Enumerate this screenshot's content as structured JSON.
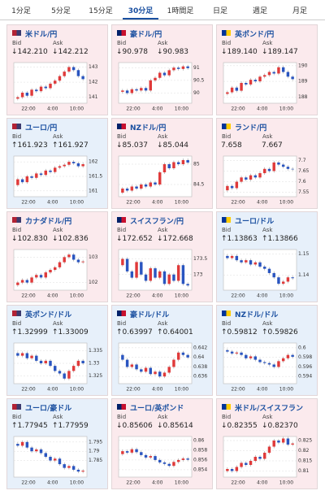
{
  "tabs": {
    "items": [
      "1分足",
      "5分足",
      "15分足",
      "30分足",
      "1時間足",
      "日足",
      "週足",
      "月足"
    ],
    "active": 3
  },
  "panels": [
    {
      "name": "米ドル/円",
      "bid_label": "Bid",
      "ask_label": "Ask",
      "bid": "↓142.210",
      "ask": "↓142.212",
      "trend": "down",
      "chart": {
        "ylim": [
          140.6,
          143.3
        ],
        "yticks": [
          141,
          142,
          143
        ],
        "xticks": [
          "22:00",
          "4:00",
          "10:00"
        ],
        "open": 140.9,
        "closes": [
          141.0,
          141.3,
          141.1,
          141.5,
          141.4,
          141.7,
          141.6,
          141.9,
          142.1,
          142.4,
          142.7,
          143.0,
          142.8,
          142.4,
          142.2
        ]
      }
    },
    {
      "name": "豪ドル/円",
      "bid_label": "Bid",
      "ask_label": "Ask",
      "bid": "↓90.978",
      "ask": "↓90.983",
      "trend": "down",
      "chart": {
        "ylim": [
          89.6,
          91.2
        ],
        "yticks": [
          90,
          90.5,
          91
        ],
        "xticks": [
          "22:00",
          "4:00",
          "10:00"
        ],
        "open": 90.05,
        "closes": [
          90.1,
          90.0,
          90.15,
          90.1,
          90.2,
          90.1,
          90.5,
          90.6,
          90.8,
          90.7,
          90.9,
          91.0,
          90.95,
          91.05,
          90.98
        ]
      }
    },
    {
      "name": "英ポンド/円",
      "bid_label": "Bid",
      "ask_label": "Ask",
      "bid": "↓189.140",
      "ask": "↓189.147",
      "trend": "down",
      "chart": {
        "ylim": [
          187.6,
          190.2
        ],
        "yticks": [
          188,
          189,
          190
        ],
        "xticks": [
          "22:00",
          "4:00",
          "10:00"
        ],
        "open": 188.2,
        "closes": [
          188.3,
          188.6,
          188.4,
          188.9,
          188.8,
          189.1,
          189.0,
          189.3,
          189.4,
          189.6,
          189.5,
          189.9,
          189.6,
          189.3,
          189.14
        ]
      }
    },
    {
      "name": "ユーロ/円",
      "bid_label": "Bid",
      "ask_label": "Ask",
      "bid": "↑161.923",
      "ask": "↑161.927",
      "trend": "up",
      "chart": {
        "ylim": [
          160.8,
          162.2
        ],
        "yticks": [
          161,
          161.5,
          162
        ],
        "xticks": [
          "22:00",
          "4:00",
          "10:00"
        ],
        "open": 161.2,
        "closes": [
          161.4,
          161.3,
          161.5,
          161.45,
          161.6,
          161.55,
          161.7,
          161.65,
          161.8,
          161.85,
          161.9,
          162.0,
          161.95,
          161.85,
          161.92
        ]
      }
    },
    {
      "name": "NZドル/円",
      "bid_label": "Bid",
      "ask_label": "Ask",
      "bid": "↓85.037",
      "ask": "↓85.044",
      "trend": "down",
      "chart": {
        "ylim": [
          84.2,
          85.2
        ],
        "yticks": [
          84.5,
          85
        ],
        "xticks": [
          "22:00",
          "4:00",
          "10:00"
        ],
        "open": 84.3,
        "closes": [
          84.4,
          84.35,
          84.45,
          84.4,
          84.5,
          84.45,
          84.55,
          84.5,
          84.8,
          85.0,
          84.9,
          85.05,
          85.0,
          85.1,
          85.04
        ]
      }
    },
    {
      "name": "ランド/円",
      "bid_label": "Bid",
      "ask_label": "Ask",
      "bid": "7.658",
      "ask": "7.667",
      "trend": "none",
      "chart": {
        "ylim": [
          7.53,
          7.72
        ],
        "yticks": [
          7.55,
          7.6,
          7.65,
          7.7
        ],
        "xticks": [
          "22:00",
          "4:00",
          "10:00"
        ],
        "open": 7.56,
        "closes": [
          7.58,
          7.57,
          7.6,
          7.62,
          7.61,
          7.63,
          7.62,
          7.64,
          7.66,
          7.65,
          7.69,
          7.68,
          7.67,
          7.66,
          7.658
        ]
      }
    },
    {
      "name": "カナダドル/円",
      "bid_label": "Bid",
      "ask_label": "Ask",
      "bid": "↓102.830",
      "ask": "↓102.836",
      "trend": "down",
      "chart": {
        "ylim": [
          101.7,
          103.3
        ],
        "yticks": [
          102,
          103
        ],
        "xticks": [
          "22:00",
          "4:00",
          "10:00"
        ],
        "open": 101.9,
        "closes": [
          102.0,
          102.1,
          102.0,
          102.2,
          102.3,
          102.2,
          102.4,
          102.5,
          102.6,
          102.8,
          103.0,
          103.1,
          102.9,
          102.8,
          102.83
        ]
      }
    },
    {
      "name": "スイスフラン/円",
      "bid_label": "Bid",
      "ask_label": "Ask",
      "bid": "↓172.652",
      "ask": "↓172.668",
      "trend": "down",
      "chart": {
        "ylim": [
          172.5,
          173.8
        ],
        "yticks": [
          173,
          173.5
        ],
        "xticks": [
          "22:00",
          "4:00",
          "10:00"
        ],
        "open": 173.3,
        "closes": [
          173.5,
          173.1,
          172.9,
          173.4,
          173.0,
          172.8,
          173.2,
          172.9,
          173.1,
          172.7,
          173.0,
          172.8,
          173.3,
          172.7,
          172.65
        ]
      }
    },
    {
      "name": "ユーロ/ドル",
      "bid_label": "Bid",
      "ask_label": "Ask",
      "bid": "↑1.13863",
      "ask": "↑1.13866",
      "trend": "up",
      "chart": {
        "ylim": [
          1.133,
          1.152
        ],
        "yticks": [
          1.14,
          1.15
        ],
        "xticks": [
          "22:00",
          "4:00",
          "10:00"
        ],
        "open": 1.149,
        "closes": [
          1.148,
          1.149,
          1.147,
          1.146,
          1.147,
          1.145,
          1.146,
          1.144,
          1.143,
          1.141,
          1.139,
          1.136,
          1.137,
          1.139,
          1.1386
        ]
      }
    },
    {
      "name": "英ポンド/ドル",
      "bid_label": "Bid",
      "ask_label": "Ask",
      "bid": "↑1.32999",
      "ask": "↑1.33009",
      "trend": "up",
      "chart": {
        "ylim": [
          1.322,
          1.338
        ],
        "yticks": [
          1.325,
          1.33,
          1.335
        ],
        "xticks": [
          "22:00",
          "4:00",
          "10:00"
        ],
        "open": 1.334,
        "closes": [
          1.333,
          1.334,
          1.332,
          1.333,
          1.331,
          1.33,
          1.331,
          1.329,
          1.327,
          1.326,
          1.324,
          1.327,
          1.329,
          1.331,
          1.33
        ]
      }
    },
    {
      "name": "豪ドル/ドル",
      "bid_label": "Bid",
      "ask_label": "Ask",
      "bid": "↑0.63997",
      "ask": "↑0.64001",
      "trend": "up",
      "chart": {
        "ylim": [
          0.6345,
          0.643
        ],
        "yticks": [
          0.636,
          0.638,
          0.64,
          0.642
        ],
        "xticks": [
          "22:00",
          "4:00",
          "10:00"
        ],
        "open": 0.6405,
        "closes": [
          0.6395,
          0.638,
          0.6385,
          0.6375,
          0.637,
          0.6378,
          0.6365,
          0.637,
          0.636,
          0.6368,
          0.638,
          0.6395,
          0.641,
          0.6405,
          0.63997
        ]
      }
    },
    {
      "name": "NZドル/ドル",
      "bid_label": "Bid",
      "ask_label": "Ask",
      "bid": "↑0.59812",
      "ask": "↑0.59826",
      "trend": "up",
      "chart": {
        "ylim": [
          0.5925,
          0.601
        ],
        "yticks": [
          0.594,
          0.596,
          0.598,
          0.6
        ],
        "xticks": [
          "22:00",
          "4:00",
          "10:00"
        ],
        "open": 0.5995,
        "closes": [
          0.5992,
          0.5988,
          0.599,
          0.5985,
          0.5978,
          0.5982,
          0.5975,
          0.597,
          0.5968,
          0.5965,
          0.596,
          0.5972,
          0.5978,
          0.5985,
          0.59812
        ]
      }
    },
    {
      "name": "ユーロ/豪ドル",
      "bid_label": "Bid",
      "ask_label": "Ask",
      "bid": "↑1.77945",
      "ask": "↑1.77959",
      "trend": "up",
      "chart": {
        "ylim": [
          1.776,
          1.798
        ],
        "yticks": [
          1.785,
          1.79,
          1.795
        ],
        "xticks": [
          "22:00",
          "4:00",
          "10:00"
        ],
        "open": 1.794,
        "closes": [
          1.793,
          1.795,
          1.792,
          1.79,
          1.791,
          1.789,
          1.787,
          1.785,
          1.786,
          1.783,
          1.781,
          1.782,
          1.78,
          1.779,
          1.7795
        ]
      }
    },
    {
      "name": "ユーロ/英ポンド",
      "bid_label": "Bid",
      "ask_label": "Ask",
      "bid": "↓0.85606",
      "ask": "↓0.85614",
      "trend": "down",
      "chart": {
        "ylim": [
          0.8525,
          0.8608
        ],
        "yticks": [
          0.854,
          0.856,
          0.858,
          0.86
        ],
        "xticks": [
          "22:00",
          "4:00",
          "10:00"
        ],
        "open": 0.8572,
        "closes": [
          0.8578,
          0.8575,
          0.8582,
          0.8576,
          0.857,
          0.8565,
          0.8568,
          0.856,
          0.8555,
          0.8552,
          0.8548,
          0.8556,
          0.856,
          0.8563,
          0.85606
        ]
      }
    },
    {
      "name": "米ドル/スイスフラン",
      "bid_label": "Bid",
      "ask_label": "Ask",
      "bid": "↓0.82355",
      "ask": "↓0.82370",
      "trend": "down",
      "chart": {
        "ylim": [
          0.807,
          0.827
        ],
        "yticks": [
          0.81,
          0.815,
          0.82,
          0.825
        ],
        "xticks": [
          "22:00",
          "4:00",
          "10:00"
        ],
        "open": 0.81,
        "closes": [
          0.811,
          0.81,
          0.812,
          0.814,
          0.813,
          0.815,
          0.817,
          0.816,
          0.819,
          0.822,
          0.825,
          0.824,
          0.826,
          0.823,
          0.82355
        ]
      }
    }
  ]
}
